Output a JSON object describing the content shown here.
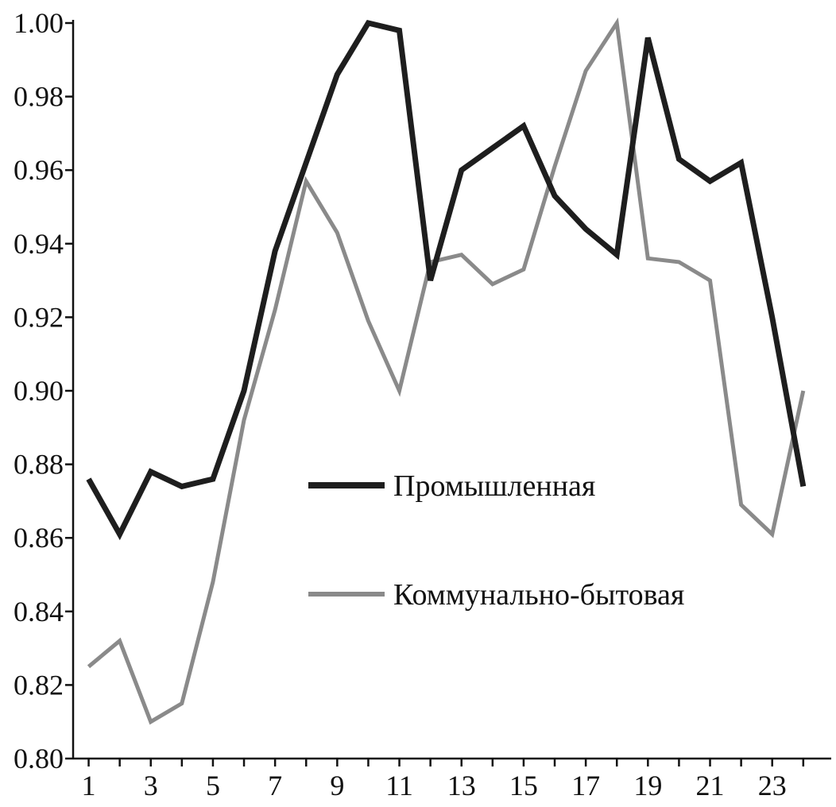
{
  "chart_data": {
    "type": "line",
    "x": [
      1,
      2,
      3,
      4,
      5,
      6,
      7,
      8,
      9,
      10,
      11,
      12,
      13,
      14,
      15,
      16,
      17,
      18,
      19,
      20,
      21,
      22,
      23,
      24
    ],
    "xticks": [
      "1",
      "3",
      "5",
      "7",
      "9",
      "11",
      "13",
      "15",
      "17",
      "19",
      "21",
      "23"
    ],
    "yticks": [
      "0.80",
      "0.82",
      "0.84",
      "0.86",
      "0.88",
      "0.90",
      "0.92",
      "0.94",
      "0.96",
      "0.98",
      "1.00"
    ],
    "ylim": [
      0.8,
      1.0
    ],
    "xlim": [
      0.5,
      24.9
    ],
    "grid": false,
    "legend_position": "center-right",
    "series": [
      {
        "name": "Промышленная",
        "color": "#1e1e1e",
        "values": [
          0.876,
          0.861,
          0.878,
          0.874,
          0.876,
          0.9,
          0.938,
          0.962,
          0.986,
          1.0,
          0.998,
          0.93,
          0.96,
          0.966,
          0.972,
          0.953,
          0.944,
          0.937,
          0.996,
          0.963,
          0.957,
          0.962,
          0.92,
          0.874
        ]
      },
      {
        "name": "Коммунально-бытовая",
        "color": "#8a8a8a",
        "values": [
          0.825,
          0.832,
          0.81,
          0.815,
          0.848,
          0.892,
          0.922,
          0.957,
          0.943,
          0.919,
          0.9,
          0.935,
          0.937,
          0.929,
          0.933,
          0.961,
          0.987,
          1.0,
          0.936,
          0.935,
          0.93,
          0.869,
          0.861,
          0.9
        ]
      }
    ]
  }
}
